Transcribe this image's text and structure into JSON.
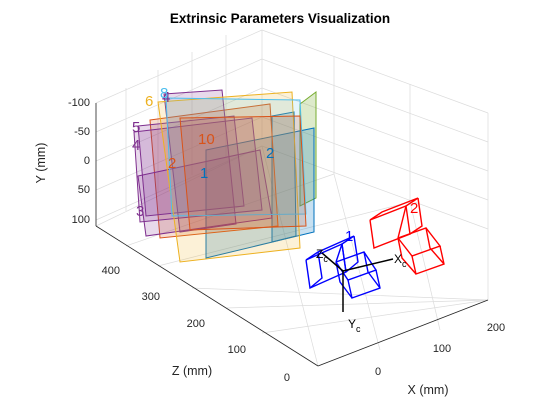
{
  "chart_data": {
    "type": "3d-extrinsics",
    "title": "Extrinsic Parameters Visualization",
    "xlabel": "X (mm)",
    "ylabel": "Y (mm)",
    "zlabel": "Z (mm)",
    "x_ticks": [
      "0",
      "100",
      "200"
    ],
    "y_ticks": [
      "-100",
      "-50",
      "0",
      "50",
      "100"
    ],
    "z_ticks": [
      "0",
      "100",
      "200",
      "300",
      "400"
    ],
    "grid": true,
    "boards": [
      {
        "label": "1",
        "color": "#0072BD"
      },
      {
        "label": "2",
        "color": "#0072BD"
      },
      {
        "label": "2",
        "color": "#D95319"
      },
      {
        "label": "3",
        "color": "#7E2F8E"
      },
      {
        "label": "4",
        "color": "#7E2F8E"
      },
      {
        "label": "4",
        "color": "#7E2F8E"
      },
      {
        "label": "5",
        "color": "#7E2F8E"
      },
      {
        "label": "6",
        "color": "#EDB120"
      },
      {
        "label": "8",
        "color": "#4DBEEE"
      },
      {
        "label": "10",
        "color": "#D95319"
      }
    ],
    "cameras": [
      {
        "label": "1",
        "color": "#0000FF"
      },
      {
        "label": "2",
        "color": "#FF0000"
      }
    ],
    "camera_axes": {
      "x_main": "X",
      "x_sub": "c",
      "y_main": "Y",
      "y_sub": "c",
      "z_main": "Z",
      "z_sub": "c"
    }
  }
}
